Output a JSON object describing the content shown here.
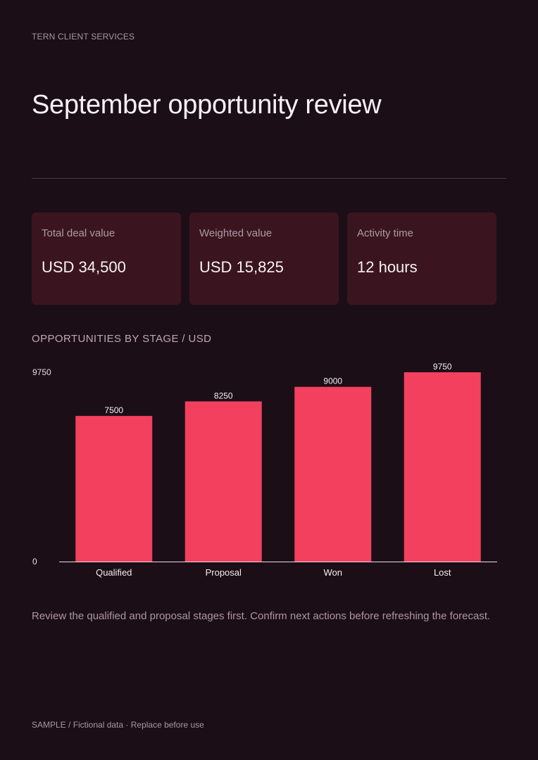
{
  "header": {
    "eyebrow": "TERN CLIENT SERVICES",
    "title": "September opportunity review"
  },
  "kpis": [
    {
      "label": "Total deal value",
      "value": "USD 34,500"
    },
    {
      "label": "Weighted value",
      "value": "USD 15,825"
    },
    {
      "label": "Activity time",
      "value": "12 hours"
    }
  ],
  "chart_data": {
    "type": "bar",
    "title": "OPPORTUNITIES BY STAGE / USD",
    "categories": [
      "Qualified",
      "Proposal",
      "Won",
      "Lost"
    ],
    "values": [
      7500,
      8250,
      9000,
      9750
    ],
    "ylim": [
      0,
      9750
    ],
    "y_ticks": [
      "0",
      "9750"
    ],
    "data_labels": [
      "7500",
      "8250",
      "9000",
      "9750"
    ],
    "grid": false,
    "legend": "none",
    "bar_color": "#f2405e"
  },
  "note": "Review the qualified and proposal stages first. Confirm next actions before refreshing the forecast.",
  "footer": "SAMPLE / Fictional data · Replace before use",
  "colors": {
    "background": "#1c0e17",
    "card": "#3a1520",
    "accent": "#f2405e"
  }
}
